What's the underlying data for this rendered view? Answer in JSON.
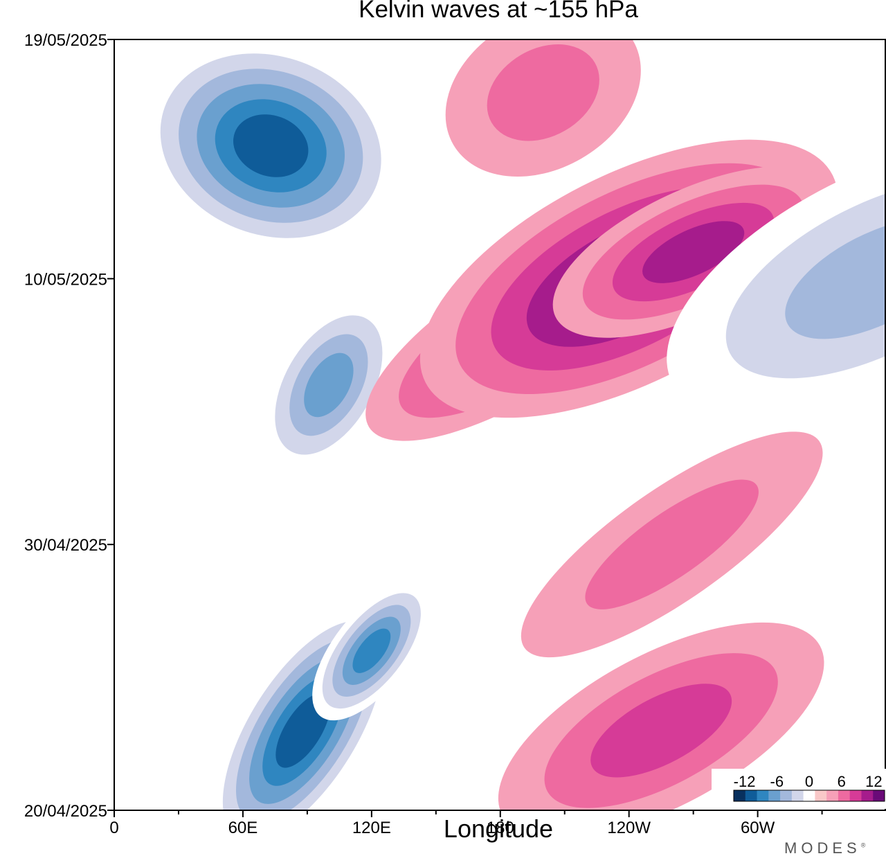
{
  "chart_data": {
    "type": "heatmap",
    "title": "Kelvin waves at ~155 hPa",
    "xlabel": "Longitude",
    "ylabel": "",
    "x_ticks": [
      "0",
      "60E",
      "120E",
      "180",
      "120W",
      "60W"
    ],
    "y_ticks": [
      "20/04/2025",
      "30/04/2025",
      "10/05/2025",
      "19/05/2025"
    ],
    "colorbar": {
      "tick_labels": [
        "-12",
        "-6",
        "0",
        "6",
        "12"
      ],
      "levels": [
        -14,
        -12,
        -10,
        -8,
        -6,
        -4,
        -2,
        2,
        4,
        6,
        8,
        10,
        12,
        14
      ],
      "colors": [
        "#08305e",
        "#0f5c99",
        "#2f86c0",
        "#6aa0cf",
        "#a3b8dc",
        "#d2d6ea",
        "#ffffff",
        "#f9c8c8",
        "#f6a0b8",
        "#ee6aa0",
        "#d63b97",
        "#a61c8c",
        "#6a0a78"
      ]
    },
    "features": [
      {
        "kind": "negative",
        "peak": -13,
        "lon": 73,
        "date": "15/05/2025"
      },
      {
        "kind": "negative",
        "peak": -8,
        "lon": 100,
        "date": "06/05/2025"
      },
      {
        "kind": "negative",
        "peak": -12,
        "lon": 88,
        "date": "23/04/2025"
      },
      {
        "kind": "negative",
        "peak": -10,
        "lon": 120,
        "date": "26/04/2025"
      },
      {
        "kind": "positive",
        "peak": 8,
        "lon": 190,
        "date": "08/05/2025"
      },
      {
        "kind": "positive",
        "peak": 10,
        "lon": 240,
        "date": "10/05/2025"
      },
      {
        "kind": "positive",
        "peak": 8,
        "lon": 270,
        "date": "11/05/2025"
      },
      {
        "kind": "positive",
        "peak": 6,
        "lon": 255,
        "date": "23/04/2025"
      },
      {
        "kind": "positive",
        "peak": 4,
        "lon": 260,
        "date": "30/04/2025"
      },
      {
        "kind": "positive",
        "peak": 4,
        "lon": 200,
        "date": "17/05/2025"
      },
      {
        "kind": "negative",
        "peak": -6,
        "lon": 355,
        "date": "10/05/2025"
      }
    ]
  },
  "brand": "MODES"
}
